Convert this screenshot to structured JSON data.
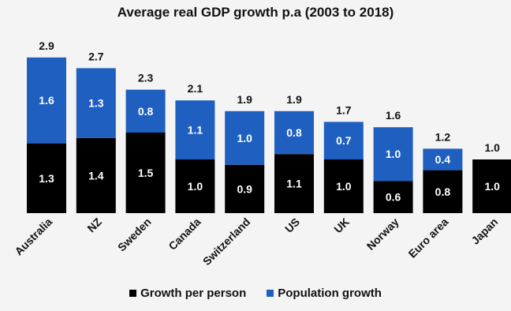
{
  "chart_data": {
    "type": "bar",
    "stacked": true,
    "title": "Average real GDP growth p.a (2003 to 2018)",
    "xlabel": "",
    "ylabel": "",
    "ylim": [
      0,
      3.3
    ],
    "grid": false,
    "legend_position": "bottom",
    "categories": [
      "Australia",
      "NZ",
      "Sweden",
      "Canada",
      "Switzerland",
      "US",
      "UK",
      "Norway",
      "Euro area",
      "Japan"
    ],
    "totals": [
      "2.9",
      "2.7",
      "2.3",
      "2.1",
      "1.9",
      "1.9",
      "1.7",
      "1.6",
      "1.2",
      "1.0"
    ],
    "series": [
      {
        "name": "Growth per person",
        "color": "#000000",
        "values": [
          1.3,
          1.4,
          1.5,
          1.0,
          0.9,
          1.1,
          1.0,
          0.6,
          0.8,
          1.0
        ],
        "labels": [
          "1.3",
          "1.4",
          "1.5",
          "1.0",
          "0.9",
          "1.1",
          "1.0",
          "0.6",
          "0.8",
          "1.0"
        ]
      },
      {
        "name": "Population growth",
        "color": "#1f5fbf",
        "values": [
          1.6,
          1.3,
          0.8,
          1.1,
          1.0,
          0.8,
          0.7,
          1.0,
          0.4,
          0.0
        ],
        "labels": [
          "1.6",
          "1.3",
          "0.8",
          "1.1",
          "1.0",
          "0.8",
          "0.7",
          "1.0",
          "0.4",
          ""
        ]
      }
    ]
  }
}
